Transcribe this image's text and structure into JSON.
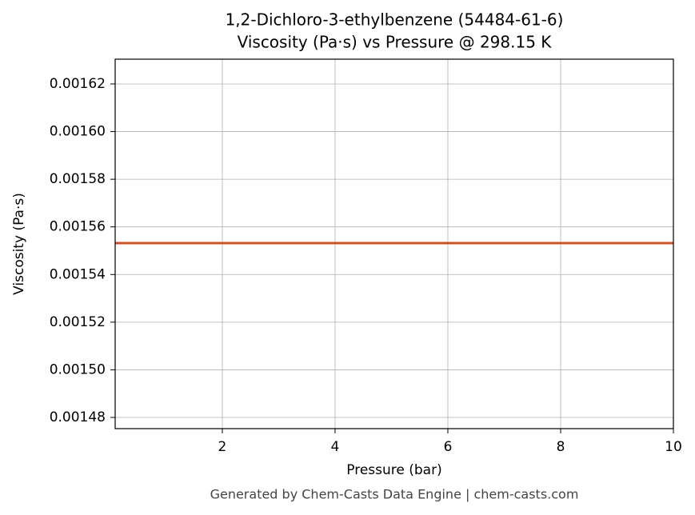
{
  "chart_data": {
    "type": "line",
    "title": "1,2-Dichloro-3-ethylbenzene (54484-61-6)",
    "subtitle": "Viscosity (Pa·s) vs Pressure @ 298.15 K",
    "x_label": "Pressure (bar)",
    "y_label": "Viscosity (Pa·s)",
    "footnote": "Generated by Chem-Casts Data Engine | chem-casts.com",
    "x": [
      0.1,
      10
    ],
    "series": [
      {
        "name": "Viscosity",
        "color": "#c8522a",
        "values": [
          0.0015532,
          0.0015532
        ]
      }
    ],
    "xlim": [
      0.1,
      10
    ],
    "xticks": [
      2,
      4,
      6,
      8,
      10
    ],
    "ylim": [
      0.0014753,
      0.0016304
    ],
    "yticks": [
      {
        "value": 0.00148,
        "label": "0.00148"
      },
      {
        "value": 0.0015,
        "label": "0.00150"
      },
      {
        "value": 0.00152,
        "label": "0.00152"
      },
      {
        "value": 0.00154,
        "label": "0.00154"
      },
      {
        "value": 0.00156,
        "label": "0.00156"
      },
      {
        "value": 0.00158,
        "label": "0.00158"
      },
      {
        "value": 0.0016,
        "label": "0.00160"
      },
      {
        "value": 0.00162,
        "label": "0.00162"
      }
    ],
    "grid": true
  }
}
